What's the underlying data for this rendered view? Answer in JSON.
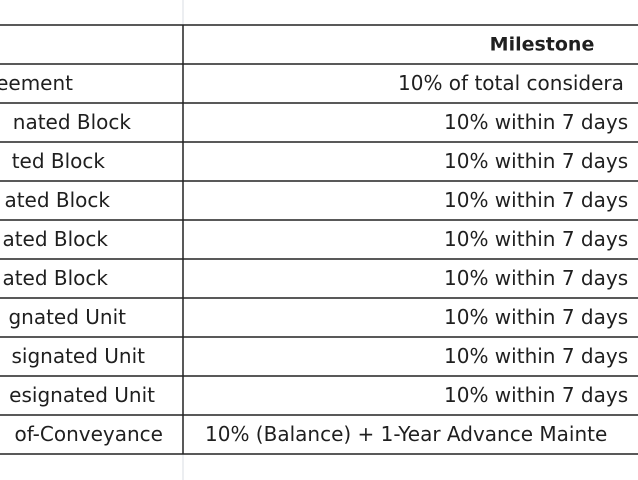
{
  "table": {
    "header": {
      "milestone": "Milestone"
    },
    "rows": [
      [
        "eement",
        "10% of total considera"
      ],
      [
        "nated Block",
        "10% within 7 days"
      ],
      [
        "ted Block",
        "10% within 7 days"
      ],
      [
        "ated Block",
        "10% within 7 days"
      ],
      [
        "ated Block",
        "10% within 7 days"
      ],
      [
        "ated Block",
        "10% within 7 days"
      ],
      [
        "gnated Unit",
        "10% within 7 days"
      ],
      [
        "signated Unit",
        "10% within 7 days"
      ],
      [
        "esignated Unit",
        "10% within 7 days"
      ],
      [
        "of-Conveyance",
        "10% (Balance) + 1-Year Advance Mainte"
      ]
    ]
  }
}
